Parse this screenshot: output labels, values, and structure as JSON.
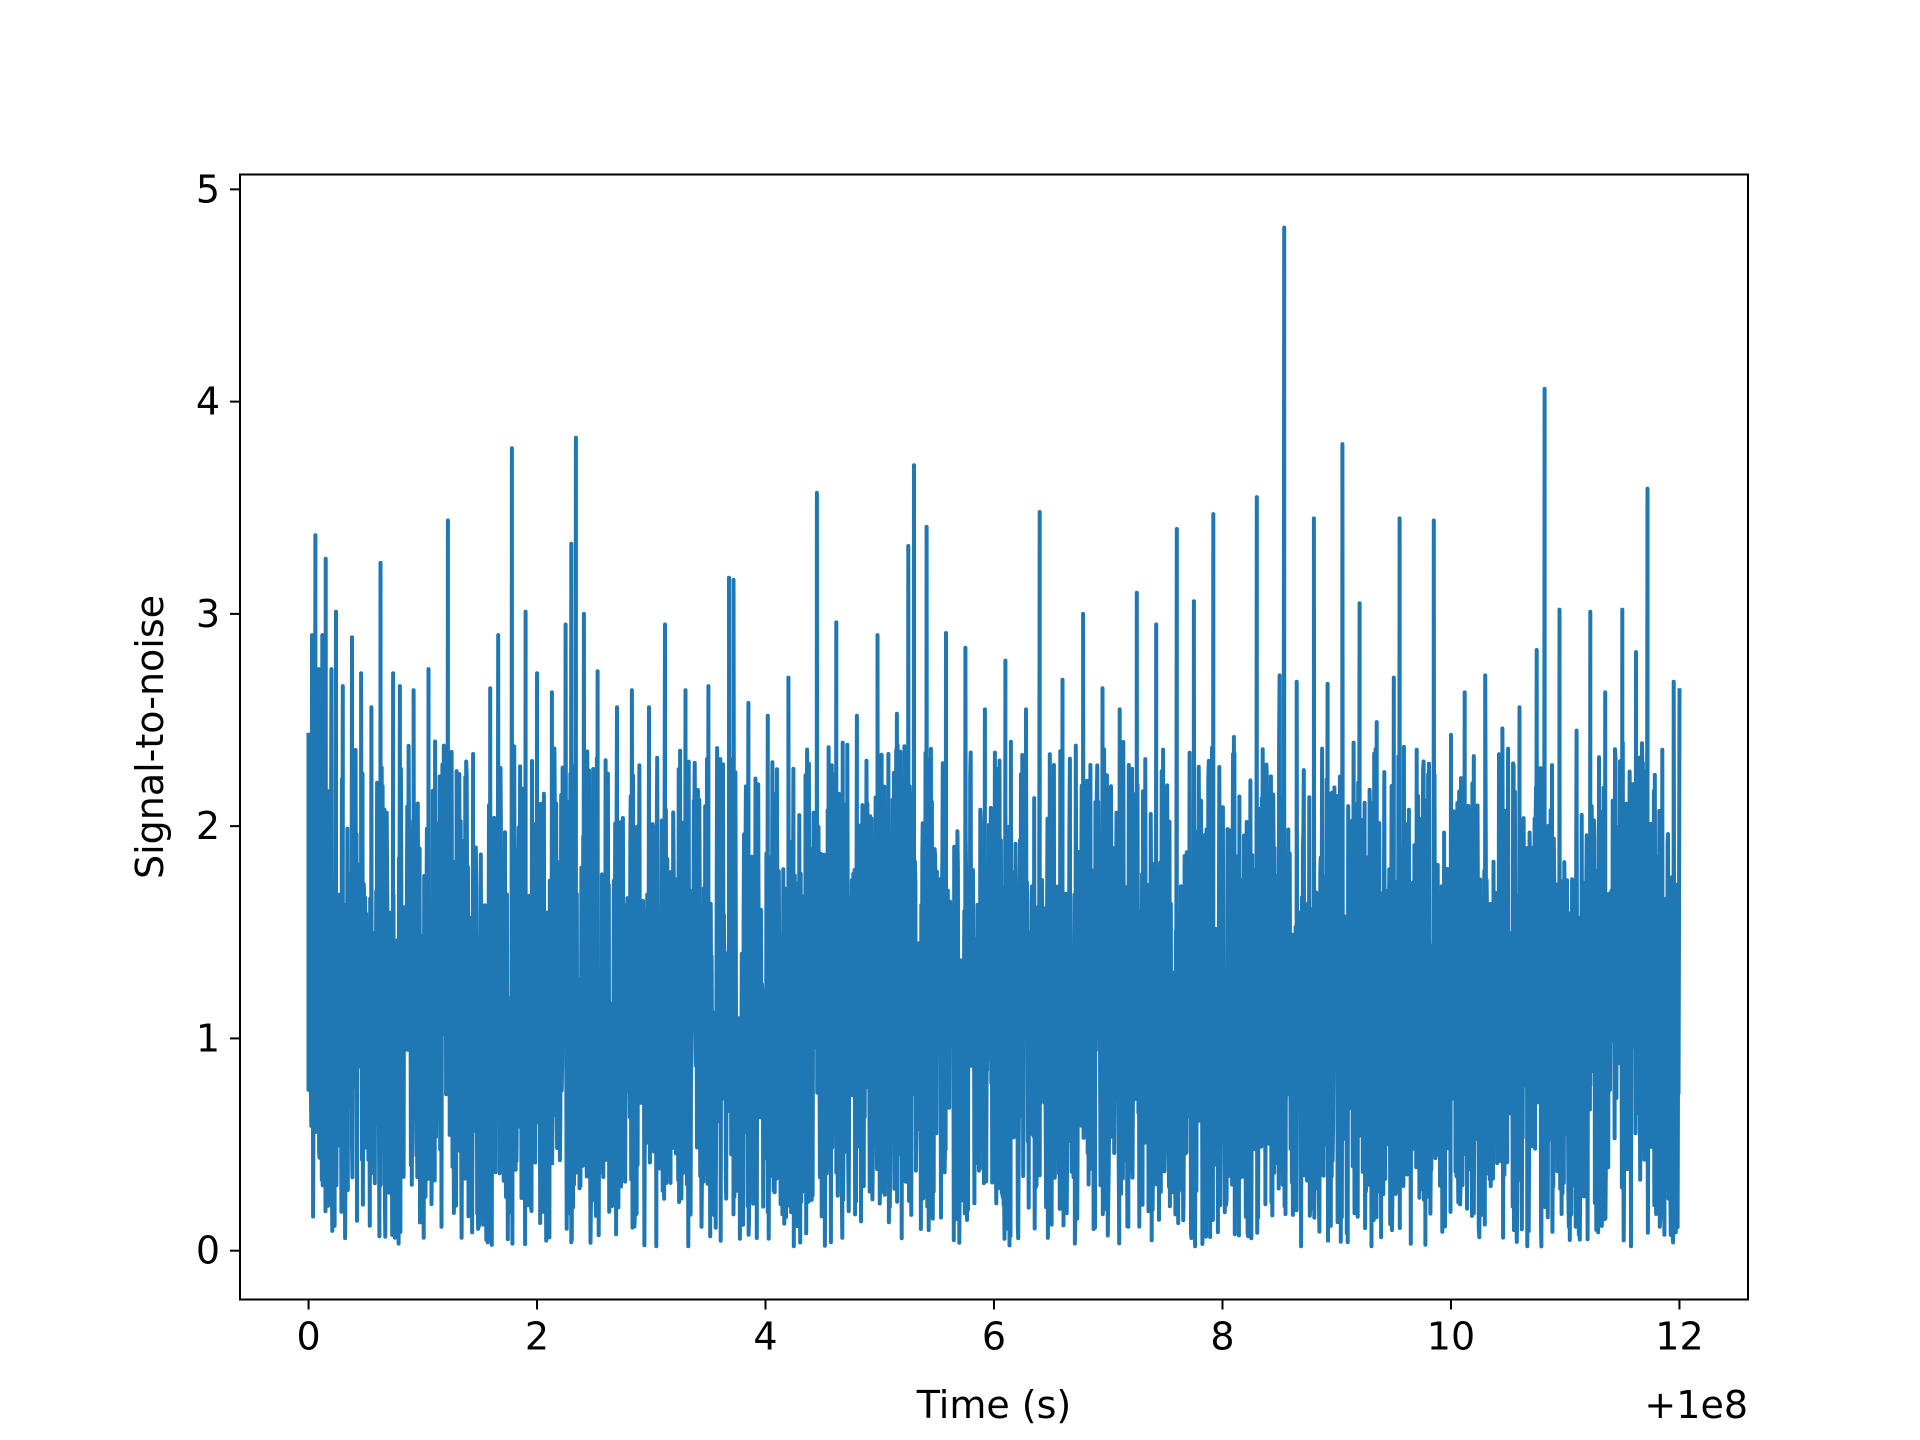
{
  "chart_data": {
    "type": "line",
    "title": "",
    "xlabel": "Time (s)",
    "ylabel": "Signal-to-noise",
    "x_offset_label": "+1e8",
    "xlim": [
      -0.6,
      12.6
    ],
    "ylim": [
      -0.23,
      5.07
    ],
    "x_ticks": [
      0,
      2,
      4,
      6,
      8,
      10,
      12
    ],
    "x_tick_labels": [
      "0",
      "2",
      "4",
      "6",
      "8",
      "10",
      "12"
    ],
    "y_ticks": [
      0,
      1,
      2,
      3,
      4,
      5
    ],
    "y_tick_labels": [
      "0",
      "1",
      "2",
      "3",
      "4",
      "5"
    ],
    "grid": false,
    "legend": "none",
    "line_color": "#1f77b4",
    "series": [
      {
        "x": [
          0,
          0.03,
          0.06,
          0.09,
          0.12,
          0.15,
          0.2,
          0.24,
          0.3,
          0.38,
          0.46,
          0.55,
          0.63,
          0.74,
          0.8,
          0.92,
          1.05,
          1.22,
          1.3,
          1.44,
          1.59,
          1.66,
          1.78,
          1.9,
          2.0,
          2.13,
          2.25,
          2.3,
          2.34,
          2.41,
          2.53,
          2.7,
          2.83,
          2.98,
          3.12,
          3.3,
          3.5,
          3.68,
          3.72,
          3.85,
          4.02,
          4.2,
          4.35,
          4.45,
          4.62,
          4.8,
          4.98,
          5.15,
          5.25,
          5.3,
          5.41,
          5.58,
          5.75,
          5.92,
          6.1,
          6.28,
          6.4,
          6.6,
          6.78,
          6.95,
          7.1,
          7.25,
          7.42,
          7.6,
          7.75,
          7.92,
          8.1,
          8.3,
          8.5,
          8.54,
          8.65,
          8.8,
          8.92,
          9.05,
          9.2,
          9.35,
          9.5,
          9.55,
          9.7,
          9.85,
          10.0,
          10.12,
          10.2,
          10.3,
          10.45,
          10.6,
          10.75,
          10.82,
          10.95,
          11.1,
          11.22,
          11.35,
          11.5,
          11.62,
          11.72,
          11.85,
          11.95,
          12.0
        ],
        "y": [
          2.44,
          2.9,
          3.37,
          2.74,
          2.9,
          3.26,
          2.74,
          3.01,
          2.66,
          2.89,
          2.72,
          2.56,
          3.24,
          2.72,
          2.66,
          2.64,
          2.74,
          3.44,
          2.07,
          2.34,
          2.65,
          2.9,
          3.78,
          3.01,
          2.72,
          2.63,
          2.95,
          3.33,
          3.83,
          3.0,
          2.73,
          2.56,
          2.64,
          2.56,
          2.95,
          2.64,
          2.66,
          3.17,
          3.16,
          2.58,
          2.52,
          2.7,
          2.24,
          3.57,
          2.96,
          2.52,
          2.9,
          2.53,
          3.32,
          3.7,
          3.41,
          2.91,
          2.84,
          2.55,
          2.78,
          2.55,
          3.48,
          2.69,
          3.0,
          2.65,
          2.55,
          3.1,
          2.95,
          3.4,
          3.06,
          3.47,
          2.42,
          3.55,
          2.71,
          4.82,
          2.68,
          3.45,
          2.67,
          3.8,
          3.05,
          2.49,
          2.7,
          3.45,
          2.36,
          3.44,
          2.43,
          2.63,
          2.33,
          2.71,
          2.46,
          2.56,
          2.83,
          4.06,
          3.02,
          2.45,
          3.01,
          2.63,
          3.02,
          2.82,
          3.59,
          2.36,
          2.68,
          2.65
        ]
      }
    ]
  }
}
